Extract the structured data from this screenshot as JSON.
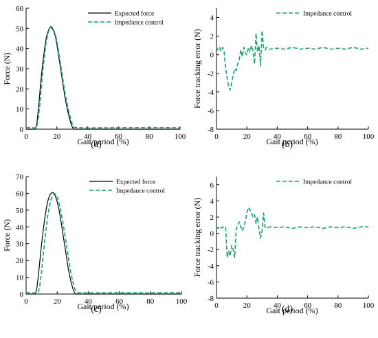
{
  "colors": {
    "expected": "#000000",
    "impedance": "#18a36a",
    "axis": "#000000"
  },
  "chart_data": [
    {
      "type": "line",
      "caption": "(a)",
      "xlabel": "Gait period (%)",
      "ylabel": "Force (N)",
      "xlim": [
        0,
        100
      ],
      "ylim": [
        0,
        60
      ],
      "xticks": [
        0,
        20,
        40,
        60,
        80,
        100
      ],
      "yticks": [
        0,
        10,
        20,
        30,
        40,
        50,
        60
      ],
      "legend": "top-right",
      "series": [
        {
          "name": "Expected force",
          "style": "solid",
          "x": [
            0,
            6,
            7,
            8,
            9,
            10,
            11,
            12,
            13,
            14,
            15,
            16,
            17,
            18,
            19,
            20,
            21,
            22,
            23,
            24,
            25,
            26,
            27,
            28,
            29,
            30,
            31,
            40,
            60,
            80,
            100
          ],
          "y": [
            0,
            0,
            3,
            10,
            19,
            27,
            34,
            40,
            45,
            48,
            50,
            50.5,
            50,
            48.5,
            46,
            42,
            37,
            32,
            27,
            22,
            17,
            13,
            9,
            6,
            3,
            1,
            0,
            0,
            0,
            0,
            0
          ]
        },
        {
          "name": "Impedance control",
          "style": "dashed",
          "x": [
            0,
            4,
            6,
            7,
            8,
            9,
            10,
            11,
            12,
            13,
            14,
            15,
            16,
            17,
            18,
            19,
            20,
            21,
            22,
            23,
            24,
            25,
            26,
            27,
            28,
            29,
            30,
            31,
            32,
            40,
            60,
            80,
            100
          ],
          "y": [
            0.8,
            0.8,
            0.5,
            1.5,
            6,
            13,
            22,
            30,
            37,
            43,
            47,
            49.5,
            51,
            50.5,
            49,
            47,
            44,
            39,
            34,
            29,
            24,
            19,
            15,
            11,
            8,
            5,
            2.5,
            1,
            0.8,
            0.6,
            0.7,
            0.8,
            0.7
          ]
        }
      ]
    },
    {
      "type": "line",
      "caption": "(b)",
      "xlabel": "Gait period (%)",
      "ylabel": "Force tracking error (N)",
      "xlim": [
        0,
        100
      ],
      "ylim": [
        -8,
        5
      ],
      "xticks": [
        0,
        20,
        40,
        60,
        80,
        100
      ],
      "yticks": [
        -8,
        -6,
        -4,
        -2,
        0,
        2,
        4
      ],
      "legend": "top-right",
      "series": [
        {
          "name": "Impedance control",
          "style": "dashed",
          "x": [
            0,
            1,
            2,
            3,
            4,
            5,
            6,
            7,
            8,
            9,
            10,
            11,
            12,
            13,
            14,
            15,
            16,
            17,
            18,
            19,
            20,
            21,
            22,
            23,
            24,
            25,
            26,
            27,
            28,
            29,
            30,
            31,
            32,
            33,
            35,
            40,
            45,
            50,
            55,
            60,
            65,
            70,
            75,
            80,
            85,
            90,
            95,
            100
          ],
          "y": [
            0.8,
            0.5,
            0.8,
            0.4,
            0.8,
            0.3,
            -1.5,
            -2.5,
            -3.4,
            -3.8,
            -3.0,
            -2.2,
            -1.5,
            -1.7,
            -1.0,
            -0.5,
            0.5,
            -0.2,
            0.8,
            0.2,
            0.0,
            0.8,
            0.3,
            1.0,
            0.4,
            -1.0,
            2.3,
            0.3,
            1.0,
            -1.2,
            2.6,
            0.8,
            0.5,
            0.8,
            0.6,
            0.7,
            0.6,
            0.8,
            0.6,
            0.7,
            0.6,
            0.8,
            0.6,
            0.7,
            0.6,
            0.8,
            0.6,
            0.7
          ]
        }
      ]
    },
    {
      "type": "line",
      "caption": "(c)",
      "xlabel": "Gait period (%)",
      "ylabel": "Force (N)",
      "xlim": [
        0,
        100
      ],
      "ylim": [
        0,
        70
      ],
      "xticks": [
        0,
        20,
        40,
        60,
        80,
        100
      ],
      "yticks": [
        0,
        10,
        20,
        30,
        40,
        50,
        60,
        70
      ],
      "legend": "top-right",
      "series": [
        {
          "name": "Expected force",
          "style": "solid",
          "x": [
            0,
            6,
            7,
            8,
            9,
            10,
            11,
            12,
            13,
            14,
            15,
            16,
            17,
            18,
            19,
            20,
            21,
            22,
            23,
            24,
            25,
            26,
            27,
            28,
            29,
            30,
            31,
            32,
            40,
            60,
            80,
            100
          ],
          "y": [
            0,
            0,
            4,
            12,
            21,
            30,
            38,
            45,
            51,
            55.5,
            58.5,
            60,
            60.5,
            60,
            58,
            55,
            51,
            46,
            40,
            34,
            28,
            22,
            16,
            11,
            7,
            3.5,
            1,
            0,
            0,
            0,
            0,
            0
          ]
        },
        {
          "name": "Impedance control",
          "style": "dashed",
          "x": [
            0,
            4,
            7,
            8,
            9,
            10,
            11,
            12,
            13,
            14,
            15,
            16,
            17,
            18,
            19,
            20,
            21,
            22,
            23,
            24,
            25,
            26,
            27,
            28,
            29,
            30,
            31,
            32,
            33,
            40,
            60,
            80,
            100
          ],
          "y": [
            0.8,
            0.8,
            0.5,
            1.5,
            6,
            14,
            23,
            32,
            40,
            47,
            52.5,
            56.5,
            59,
            60,
            59.5,
            58,
            55,
            51,
            46,
            41,
            35,
            29,
            23,
            17,
            12,
            7.5,
            4,
            1.5,
            0.8,
            0.7,
            0.8,
            0.7,
            0.8
          ]
        }
      ]
    },
    {
      "type": "line",
      "caption": "(d)",
      "xlabel": "Gait period (%)",
      "ylabel": "Force tracking error (N)",
      "xlim": [
        0,
        100
      ],
      "ylim": [
        -8,
        7
      ],
      "xticks": [
        0,
        20,
        40,
        60,
        80,
        100
      ],
      "yticks": [
        -8,
        -6,
        -4,
        -2,
        0,
        2,
        4,
        6
      ],
      "legend": "top-right",
      "series": [
        {
          "name": "Impedance control",
          "style": "dashed",
          "x": [
            0,
            1,
            2,
            3,
            4,
            5,
            6,
            7,
            8,
            9,
            10,
            11,
            12,
            13,
            14,
            15,
            16,
            17,
            18,
            19,
            20,
            21,
            22,
            23,
            24,
            25,
            26,
            27,
            28,
            29,
            30,
            31,
            32,
            33,
            35,
            40,
            45,
            50,
            55,
            60,
            65,
            70,
            75,
            80,
            85,
            90,
            95,
            100
          ],
          "y": [
            0.8,
            0.6,
            0.8,
            0.6,
            0.8,
            0.7,
            0.8,
            -3.0,
            -2.2,
            -2.8,
            -1.5,
            -2.0,
            -3.0,
            0.5,
            1.0,
            1.4,
            0.8,
            0.3,
            0.8,
            1.5,
            2.5,
            3.2,
            2.9,
            2.6,
            2.0,
            2.3,
            1.2,
            2.0,
            0.5,
            -0.6,
            0.3,
            2.5,
            0.8,
            0.6,
            0.8,
            0.7,
            0.8,
            0.6,
            0.8,
            0.7,
            0.8,
            0.6,
            0.8,
            0.7,
            0.8,
            0.6,
            0.8,
            0.8
          ]
        }
      ]
    }
  ]
}
